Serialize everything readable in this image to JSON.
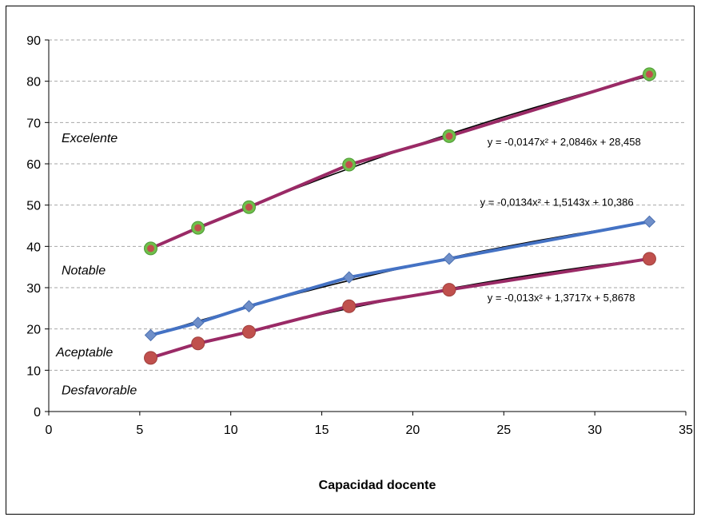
{
  "chart_data": {
    "type": "scatter",
    "title": "",
    "xlabel": "Capacidad docente",
    "ylabel": "",
    "xlim": [
      0,
      35
    ],
    "ylim": [
      0,
      90
    ],
    "x_ticks": [
      0,
      5,
      10,
      15,
      20,
      25,
      30,
      35
    ],
    "y_ticks": [
      0,
      10,
      20,
      30,
      40,
      50,
      60,
      70,
      80,
      90
    ],
    "grid": "horizontal dashed",
    "series": [
      {
        "color": "#9a2a66",
        "marker_color": "#6fbf4a",
        "marker": "circle",
        "x": [
          5.6,
          8.2,
          11.0,
          16.5,
          22.0,
          33.0
        ],
        "y": [
          39.5,
          44.5,
          49.5,
          59.8,
          66.7,
          81.7
        ],
        "trendline": "y = -0,0147x² + 2,0846x + 28,458",
        "trend_coef": [
          -0.0147,
          2.0846,
          28.458
        ]
      },
      {
        "color": "#4472c4",
        "marker_color": "#6f8fc9",
        "marker": "diamond",
        "x": [
          5.6,
          8.2,
          11.0,
          16.5,
          22.0,
          33.0
        ],
        "y": [
          18.5,
          21.5,
          25.5,
          32.5,
          37.0,
          46.0
        ],
        "trendline": "y = -0,0134x² + 1,5143x + 10,386",
        "trend_coef": [
          -0.0134,
          1.5143,
          10.386
        ]
      },
      {
        "color": "#9a2a66",
        "marker_color": "#c0504d",
        "marker": "circle",
        "x": [
          5.6,
          8.2,
          11.0,
          16.5,
          22.0,
          33.0
        ],
        "y": [
          13.0,
          16.5,
          19.3,
          25.5,
          29.5,
          37.0
        ],
        "trendline": "y = -0,013x² + 1,3717x + 5,8678",
        "trend_coef": [
          -0.013,
          1.3717,
          5.8678
        ]
      }
    ],
    "annotations": [
      {
        "text": "Excelente",
        "x": 0.7,
        "y": 65.2
      },
      {
        "text": "Notable",
        "x": 0.7,
        "y": 33.2
      },
      {
        "text": "Aceptable",
        "x": 0.4,
        "y": 13.4
      },
      {
        "text": "Desfavorable",
        "x": 0.7,
        "y": 4.2
      }
    ],
    "equation_positions": [
      {
        "x": 24.1,
        "y": 64.5
      },
      {
        "x": 23.7,
        "y": 49.8
      },
      {
        "x": 24.1,
        "y": 26.7
      }
    ]
  }
}
